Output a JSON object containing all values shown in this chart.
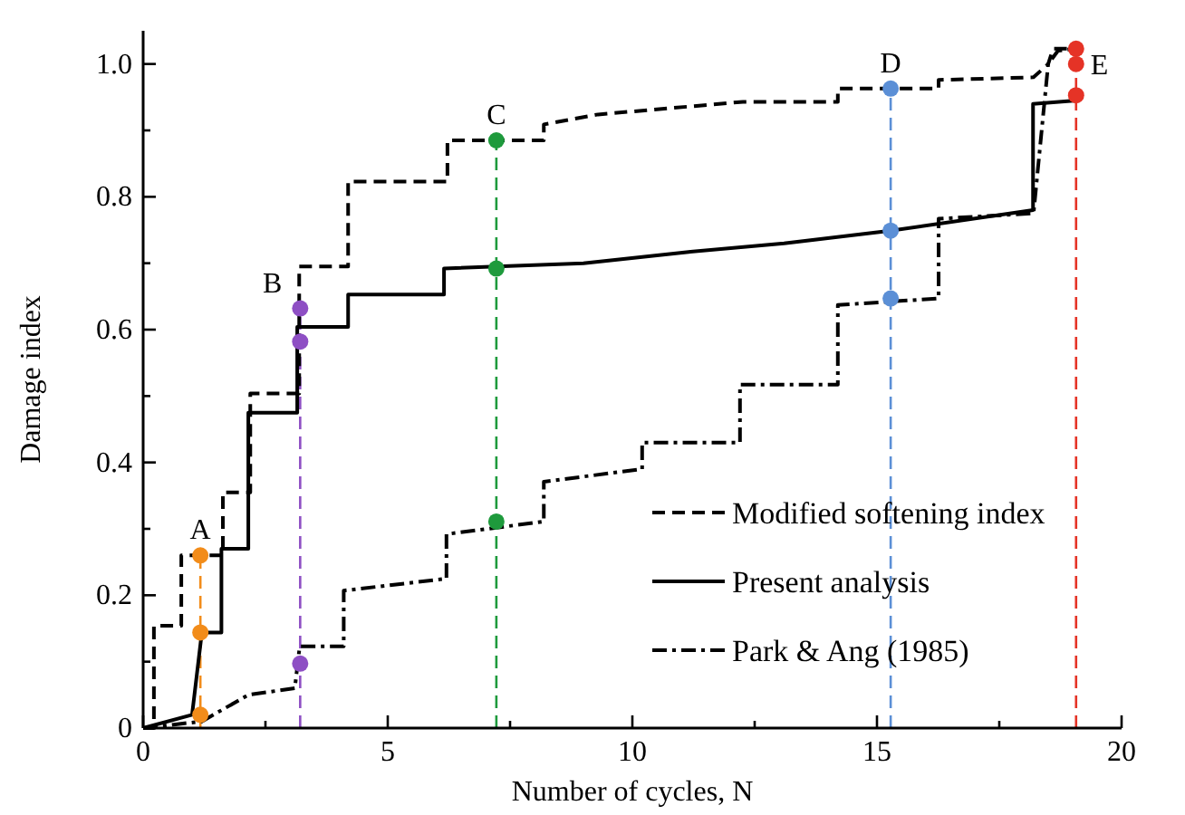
{
  "chart_data": {
    "type": "line",
    "xlabel": "Number of cycles, N",
    "ylabel": "Damage index",
    "xlim": [
      0,
      20
    ],
    "ylim": [
      0,
      1.05
    ],
    "xticks": [
      0,
      {
        "value": 2.5,
        "label": null
      },
      5,
      {
        "value": 7.5,
        "label": null
      },
      10,
      {
        "value": 12.5,
        "label": null
      },
      15,
      {
        "value": 17.5,
        "label": null
      },
      20
    ],
    "yticks": [
      "0",
      {
        "value": 0.1,
        "label": null
      },
      {
        "value": 0.2,
        "label": "0.2"
      },
      {
        "value": 0.3,
        "label": null
      },
      {
        "value": 0.4,
        "label": "0.4"
      },
      {
        "value": 0.5,
        "label": null
      },
      {
        "value": 0.6,
        "label": "0.6"
      },
      {
        "value": 0.7,
        "label": null
      },
      {
        "value": 0.8,
        "label": "0.8"
      },
      {
        "value": 0.9,
        "label": null
      },
      {
        "value": 1,
        "label": "1.0"
      }
    ],
    "legend": "bottom right",
    "grid": false,
    "series": [
      {
        "name": "Modified softening index",
        "color": "#000000",
        "line_style": "dashed",
        "x": [
          0,
          0.22,
          0.22,
          0.78,
          0.78,
          1.63,
          1.63,
          2.19,
          2.19,
          3.19,
          3.19,
          4.19,
          4.19,
          6.22,
          6.22,
          8.19,
          8.19,
          9.3,
          12.26,
          12.26,
          14.2,
          14.2,
          16.26,
          16.26,
          18.2,
          18.5,
          18.6,
          19.07
        ],
        "values": [
          0,
          0,
          0.154,
          0.154,
          0.26,
          0.26,
          0.355,
          0.355,
          0.504,
          0.504,
          0.695,
          0.695,
          0.823,
          0.823,
          0.885,
          0.885,
          0.909,
          0.924,
          0.943,
          0.943,
          0.943,
          0.963,
          0.963,
          0.976,
          0.98,
          1.0,
          1.023,
          1.023
        ]
      },
      {
        "name": "Present analysis",
        "color": "#000000",
        "line_style": "solid",
        "x": [
          0,
          1.0,
          1.2,
          1.6,
          1.6,
          2.15,
          2.15,
          3.15,
          3.15,
          4.19,
          4.19,
          6.15,
          6.15,
          9.0,
          11.15,
          13.1,
          15.28,
          18.19,
          18.19,
          19.07
        ],
        "values": [
          0,
          0.02,
          0.144,
          0.144,
          0.27,
          0.27,
          0.475,
          0.475,
          0.604,
          0.604,
          0.653,
          0.653,
          0.692,
          0.7,
          0.717,
          0.73,
          0.749,
          0.78,
          0.94,
          0.945
        ]
      },
      {
        "name": "Park & Ang (1985)",
        "color": "#000000",
        "line_style": "dashdot",
        "x": [
          0,
          1.2,
          2.15,
          3.1,
          3.2,
          4.1,
          4.1,
          6.2,
          6.2,
          8.19,
          8.19,
          10.2,
          10.2,
          12.2,
          12.2,
          14.2,
          14.2,
          16.26,
          16.26,
          18.2,
          18.5,
          18.7,
          19.07
        ],
        "values": [
          0,
          0.01,
          0.05,
          0.06,
          0.123,
          0.123,
          0.207,
          0.225,
          0.292,
          0.311,
          0.371,
          0.39,
          0.43,
          0.43,
          0.517,
          0.517,
          0.637,
          0.647,
          0.767,
          0.775,
          1.0,
          1.02,
          1.023
        ]
      },
      {
        "type": "scatter",
        "marker": "circle",
        "color": "#f28c1a",
        "x": [
          1.17,
          1.17,
          1.17
        ],
        "values": [
          0.26,
          0.144,
          0.02
        ]
      },
      {
        "type": "scatter",
        "marker": "circle",
        "color": "#8e4fc4",
        "x": [
          3.21,
          3.21,
          3.21
        ],
        "values": [
          0.632,
          0.582,
          0.097
        ]
      },
      {
        "type": "scatter",
        "marker": "circle",
        "color": "#1e9a3c",
        "x": [
          7.22,
          7.22,
          7.22
        ],
        "values": [
          0.885,
          0.692,
          0.311
        ]
      },
      {
        "type": "scatter",
        "marker": "circle",
        "color": "#5b8fd6",
        "x": [
          15.28,
          15.28,
          15.28
        ],
        "values": [
          0.963,
          0.749,
          0.647
        ]
      },
      {
        "type": "scatter",
        "marker": "circle",
        "color": "#e53326",
        "x": [
          19.07,
          19.07,
          19.07
        ],
        "values": [
          1.023,
          1.0,
          0.953
        ]
      }
    ],
    "ref_lines": [
      {
        "axis": "x",
        "value": 1.17,
        "label": "A",
        "color": "#f28c1a",
        "line_style": "dashed"
      },
      {
        "axis": "x",
        "value": 3.21,
        "label": "B",
        "color": "#8e4fc4",
        "line_style": "dashed"
      },
      {
        "axis": "x",
        "value": 7.22,
        "label": "C",
        "color": "#1e9a3c",
        "line_style": "dashed"
      },
      {
        "axis": "x",
        "value": 15.28,
        "label": "D",
        "color": "#5b8fd6",
        "line_style": "dashed"
      },
      {
        "axis": "x",
        "value": 19.07,
        "label": "E",
        "color": "#e53326",
        "line_style": "dashed"
      }
    ]
  }
}
